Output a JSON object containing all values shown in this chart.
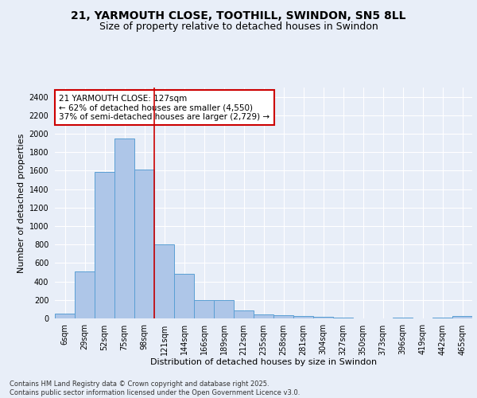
{
  "title_line1": "21, YARMOUTH CLOSE, TOOTHILL, SWINDON, SN5 8LL",
  "title_line2": "Size of property relative to detached houses in Swindon",
  "xlabel": "Distribution of detached houses by size in Swindon",
  "ylabel": "Number of detached properties",
  "footer": "Contains HM Land Registry data © Crown copyright and database right 2025.\nContains public sector information licensed under the Open Government Licence v3.0.",
  "bar_labels": [
    "6sqm",
    "29sqm",
    "52sqm",
    "75sqm",
    "98sqm",
    "121sqm",
    "144sqm",
    "166sqm",
    "189sqm",
    "212sqm",
    "235sqm",
    "258sqm",
    "281sqm",
    "304sqm",
    "327sqm",
    "350sqm",
    "373sqm",
    "396sqm",
    "419sqm",
    "442sqm",
    "465sqm"
  ],
  "bar_values": [
    55,
    510,
    1590,
    1950,
    1610,
    805,
    480,
    200,
    195,
    90,
    45,
    38,
    28,
    15,
    5,
    0,
    0,
    5,
    0,
    5,
    28
  ],
  "bar_color": "#aec6e8",
  "bar_edge_color": "#5a9fd4",
  "annotation_text": "21 YARMOUTH CLOSE: 127sqm\n← 62% of detached houses are smaller (4,550)\n37% of semi-detached houses are larger (2,729) →",
  "vline_index": 5.0,
  "vline_color": "#cc0000",
  "annotation_box_color": "#cc0000",
  "ylim": [
    0,
    2500
  ],
  "yticks": [
    0,
    200,
    400,
    600,
    800,
    1000,
    1200,
    1400,
    1600,
    1800,
    2000,
    2200,
    2400
  ],
  "bg_color": "#e8eef8",
  "plot_bg_color": "#e8eef8",
  "grid_color": "#ffffff",
  "title_fontsize": 10,
  "subtitle_fontsize": 9,
  "axis_label_fontsize": 8,
  "tick_fontsize": 7,
  "annotation_fontsize": 7.5,
  "footer_fontsize": 6
}
